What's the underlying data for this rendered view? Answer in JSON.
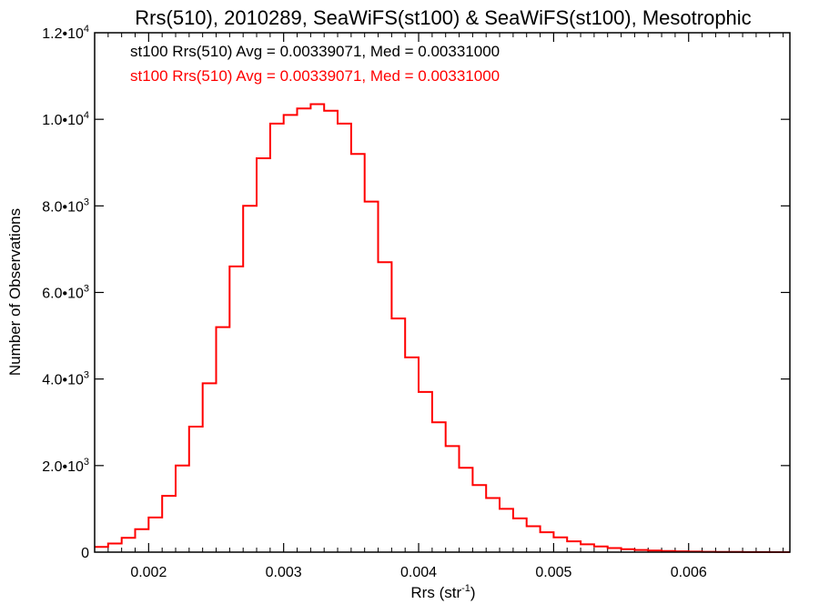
{
  "chart_data": {
    "type": "histogram",
    "title": "Rrs(510), 2010289, SeaWiFS(st100) & SeaWiFS(st100), Mesotrophic",
    "xlabel": "Rrs (str",
    "xlabel_sup": "-1",
    "xlabel_close": ")",
    "ylabel": "Number of Observations",
    "xlim": [
      0.0016,
      0.00675
    ],
    "ylim": [
      0,
      12000
    ],
    "x_ticks": [
      {
        "value": 0.002,
        "label": "0.002"
      },
      {
        "value": 0.003,
        "label": "0.003"
      },
      {
        "value": 0.004,
        "label": "0.004"
      },
      {
        "value": 0.005,
        "label": "0.005"
      },
      {
        "value": 0.006,
        "label": "0.006"
      }
    ],
    "y_ticks": [
      {
        "value": 0,
        "label": "0",
        "sup": ""
      },
      {
        "value": 2000,
        "label": "2.0•10",
        "sup": "3"
      },
      {
        "value": 4000,
        "label": "4.0•10",
        "sup": "3"
      },
      {
        "value": 6000,
        "label": "6.0•10",
        "sup": "3"
      },
      {
        "value": 8000,
        "label": "8.0•10",
        "sup": "3"
      },
      {
        "value": 10000,
        "label": "1.0•10",
        "sup": "4"
      },
      {
        "value": 12000,
        "label": "1.2•10",
        "sup": "4"
      }
    ],
    "annotations": [
      {
        "text": "st100 Rrs(510) Avg = 0.00339071, Med = 0.00331000",
        "color": "#000000"
      },
      {
        "text": "st100 Rrs(510) Avg = 0.00339071, Med = 0.00331000",
        "color": "#ff0000"
      }
    ],
    "series": [
      {
        "color": "#ff0000",
        "bin_width": 1.67e-05,
        "x": [
          0.0016,
          0.0017,
          0.0018,
          0.0019,
          0.002,
          0.0021,
          0.0022,
          0.0023,
          0.0024,
          0.0025,
          0.0026,
          0.0027,
          0.0028,
          0.0029,
          0.003,
          0.0031,
          0.0032,
          0.0033,
          0.0034,
          0.0035,
          0.0036,
          0.0037,
          0.0038,
          0.0039,
          0.004,
          0.0041,
          0.0042,
          0.0043,
          0.0044,
          0.0045,
          0.0046,
          0.0047,
          0.0048,
          0.0049,
          0.005,
          0.0051,
          0.0052,
          0.0053,
          0.0054,
          0.0055,
          0.0056,
          0.0057,
          0.0058,
          0.0059,
          0.006,
          0.0061,
          0.0062,
          0.0063,
          0.0064,
          0.0065,
          0.0066,
          0.00675
        ],
        "y": [
          120,
          200,
          330,
          530,
          800,
          1300,
          2000,
          2900,
          3900,
          5200,
          6600,
          8000,
          9100,
          9900,
          10100,
          10250,
          10350,
          10200,
          9900,
          9200,
          8100,
          6700,
          5400,
          4500,
          3700,
          3000,
          2450,
          1950,
          1550,
          1250,
          1000,
          780,
          600,
          460,
          340,
          250,
          180,
          130,
          95,
          70,
          50,
          35,
          25,
          18,
          12,
          8,
          6,
          4,
          3,
          2,
          1,
          0
        ]
      }
    ]
  }
}
